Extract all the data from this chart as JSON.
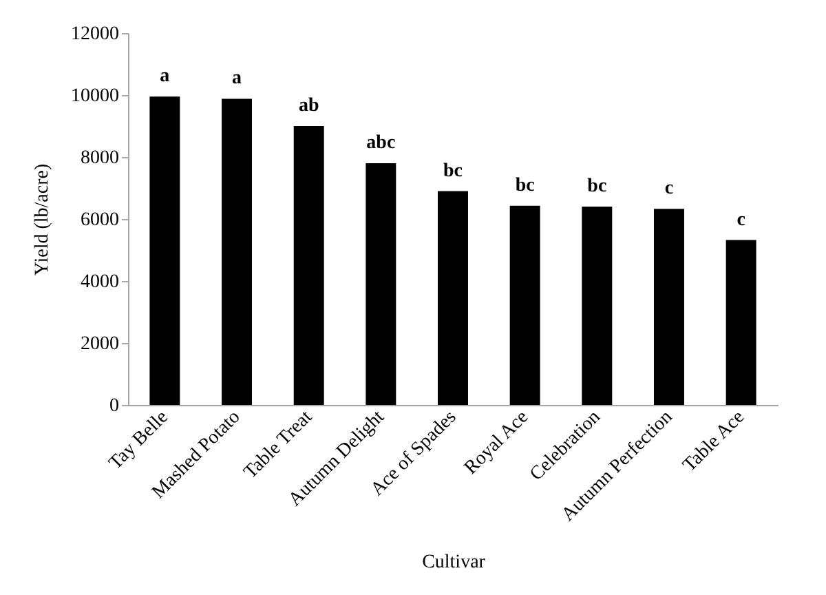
{
  "chart_data": {
    "type": "bar",
    "xlabel": "Cultivar",
    "ylabel": "Yield (lb/acre)",
    "categories": [
      "Tay Belle",
      "Mashed Potato",
      "Table Treat",
      "Autumn Delight",
      "Ace of Spades",
      "Royal Ace",
      "Celebration",
      "Autumn Perfection",
      "Table Ace"
    ],
    "values": [
      9950,
      9880,
      9000,
      7800,
      6900,
      6430,
      6400,
      6330,
      5320
    ],
    "color": "#000000",
    "ylim": [
      0,
      12000
    ],
    "yticks": [
      0,
      2000,
      4000,
      6000,
      8000,
      10000,
      12000
    ],
    "annotations": [
      {
        "text": "a",
        "x": "Tay Belle",
        "y": 9950
      },
      {
        "text": "a",
        "x": "Mashed Potato",
        "y": 9880
      },
      {
        "text": "ab",
        "x": "Table Treat",
        "y": 9000
      },
      {
        "text": "abc",
        "x": "Autumn Delight",
        "y": 7800
      },
      {
        "text": "bc",
        "x": "Ace of Spades",
        "y": 6900
      },
      {
        "text": "bc",
        "x": "Royal Ace",
        "y": 6430
      },
      {
        "text": "bc",
        "x": "Celebration",
        "y": 6400
      },
      {
        "text": "c",
        "x": "Autumn Perfection",
        "y": 6330
      },
      {
        "text": "c",
        "x": "Table Ace",
        "y": 5320
      }
    ]
  }
}
